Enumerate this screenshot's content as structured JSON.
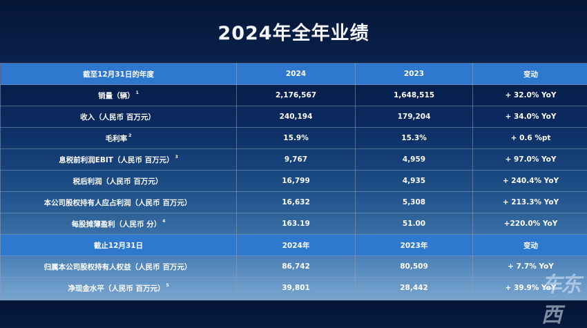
{
  "title": "2024年全年业绩",
  "table1": {
    "header": [
      "截至12月31日的年度",
      "2024",
      "2023",
      "变动"
    ],
    "rows": [
      {
        "label": "销量（辆）",
        "note": "1",
        "v2024": "2,176,567",
        "v2023": "1,648,515",
        "change": "+ 32.0% YoY"
      },
      {
        "label": "收入（人民币 百万元）",
        "note": "",
        "v2024": "240,194",
        "v2023": "179,204",
        "change": "+ 34.0% YoY"
      },
      {
        "label": "毛利率",
        "note": "2",
        "v2024": "15.9%",
        "v2023": "15.3%",
        "change": "+ 0.6 %pt"
      },
      {
        "label": "息税前利润EBIT（人民币 百万元）",
        "note": "3",
        "v2024": "9,767",
        "v2023": "4,959",
        "change": "+ 97.0% YoY"
      },
      {
        "label": "税后利润（人民币 百万元）",
        "note": "",
        "v2024": "16,799",
        "v2023": "4,935",
        "change": "+ 240.4% YoY"
      },
      {
        "label": "本公司股权持有人应占利润（人民币 百万元）",
        "note": "",
        "v2024": "16,632",
        "v2023": "5,308",
        "change": "+ 213.3% YoY"
      },
      {
        "label": "每股摊薄盈利（人民币 分）",
        "note": "4",
        "v2024": "163.19",
        "v2023": "51.00",
        "change": "+220.0% YoY"
      }
    ]
  },
  "table2": {
    "header": [
      "截止12月31日",
      "2024年",
      "2023年",
      "变动"
    ],
    "rows": [
      {
        "label": "归属本公司股权持有人权益（人民币 百万元）",
        "note": "",
        "v2024": "86,742",
        "v2023": "80,509",
        "change": "+ 7.7% YoY"
      },
      {
        "label": "净现金水平（人民币 百万元）",
        "note": "5",
        "v2024": "39,801",
        "v2023": "28,442",
        "change": "+ 39.9% YoY"
      }
    ]
  },
  "watermark": "车东西"
}
